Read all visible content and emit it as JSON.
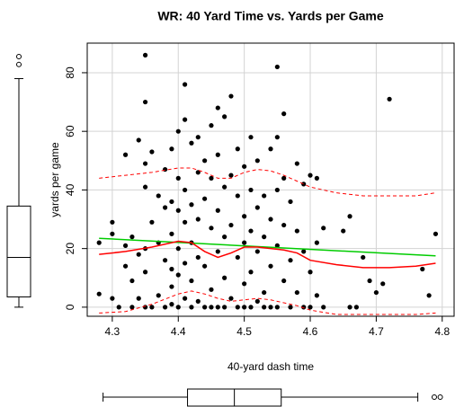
{
  "chart_data": {
    "type": "scatter",
    "title": "WR: 40 Yard Time vs. Yards per Game",
    "x_label": "40-yard dash time",
    "y_label": "yards per game",
    "color": "#000000",
    "grid": true,
    "xlim": [
      4.262,
      4.818
    ],
    "ylim": [
      -3.1,
      90.1
    ],
    "xticks": [
      4.3,
      4.4,
      4.5,
      4.6,
      4.7,
      4.8
    ],
    "yticks": [
      0,
      20,
      40,
      60,
      80
    ],
    "x": [
      4.28,
      4.28,
      4.3,
      4.3,
      4.3,
      4.31,
      4.32,
      4.32,
      4.32,
      4.33,
      4.33,
      4.33,
      4.34,
      4.34,
      4.34,
      4.35,
      4.35,
      4.35,
      4.35,
      4.35,
      4.35,
      4.35,
      4.36,
      4.36,
      4.36,
      4.37,
      4.37,
      4.37,
      4.38,
      4.38,
      4.38,
      4.38,
      4.39,
      4.39,
      4.39,
      4.39,
      4.39,
      4.39,
      4.4,
      4.4,
      4.4,
      4.4,
      4.4,
      4.4,
      4.41,
      4.41,
      4.41,
      4.41,
      4.41,
      4.41,
      4.42,
      4.42,
      4.42,
      4.42,
      4.42,
      4.43,
      4.43,
      4.43,
      4.43,
      4.43,
      4.44,
      4.44,
      4.44,
      4.44,
      4.45,
      4.45,
      4.45,
      4.45,
      4.45,
      4.46,
      4.46,
      4.46,
      4.46,
      4.46,
      4.47,
      4.47,
      4.47,
      4.47,
      4.47,
      4.48,
      4.48,
      4.48,
      4.48,
      4.49,
      4.49,
      4.49,
      4.49,
      4.5,
      4.5,
      4.5,
      4.5,
      4.5,
      4.51,
      4.51,
      4.51,
      4.51,
      4.51,
      4.52,
      4.52,
      4.52,
      4.52,
      4.53,
      4.53,
      4.53,
      4.53,
      4.54,
      4.54,
      4.54,
      4.54,
      4.55,
      4.55,
      4.55,
      4.55,
      4.55,
      4.56,
      4.56,
      4.56,
      4.56,
      4.57,
      4.57,
      4.57,
      4.58,
      4.58,
      4.58,
      4.59,
      4.59,
      4.59,
      4.6,
      4.6,
      4.6,
      4.61,
      4.61,
      4.61,
      4.62,
      4.62,
      4.65,
      4.66,
      4.66,
      4.67,
      4.68,
      4.69,
      4.7,
      4.71,
      4.72,
      4.77,
      4.78,
      4.79
    ],
    "values": [
      4.5,
      22,
      29,
      25,
      3,
      0,
      52,
      21,
      14,
      24,
      9,
      0,
      57,
      18,
      3,
      86,
      70,
      49,
      41,
      20,
      12,
      0,
      53,
      29,
      0,
      38,
      22,
      4,
      47,
      34,
      16,
      0,
      54,
      36,
      25,
      13,
      7,
      1,
      60,
      44,
      33,
      20,
      11,
      0,
      76,
      64,
      40,
      29,
      15,
      3,
      56,
      35,
      22,
      9,
      0,
      58,
      46,
      30,
      17,
      2,
      50,
      37,
      14,
      0,
      62,
      44,
      27,
      6,
      0,
      68,
      52,
      33,
      19,
      0,
      65,
      41,
      24,
      10,
      0,
      72,
      45,
      28,
      3,
      54,
      38,
      17,
      0,
      48,
      31,
      22,
      8,
      0,
      58,
      40,
      26,
      12,
      0,
      50,
      34,
      19,
      2,
      38,
      24,
      5,
      0,
      54,
      30,
      14,
      0,
      82,
      58,
      40,
      21,
      0,
      66,
      44,
      28,
      9,
      36,
      16,
      0,
      49,
      26,
      5,
      42,
      19,
      0,
      45,
      12,
      0,
      44,
      22,
      4,
      27,
      0,
      26,
      31,
      0,
      0,
      17,
      9,
      5,
      8,
      71,
      13,
      4,
      25
    ],
    "lines": [
      {
        "color": "#00cc00",
        "dash": false,
        "x": [
          4.28,
          4.79
        ],
        "values": [
          23.5,
          17.5
        ]
      },
      {
        "color": "#ff0000",
        "dash": false,
        "x": [
          4.28,
          4.32,
          4.36,
          4.4,
          4.42,
          4.44,
          4.46,
          4.48,
          4.5,
          4.52,
          4.54,
          4.56,
          4.58,
          4.6,
          4.64,
          4.68,
          4.72,
          4.76,
          4.79
        ],
        "values": [
          18,
          19,
          20.5,
          22.5,
          22,
          19,
          17,
          18.5,
          20.5,
          20.5,
          20,
          19.5,
          18.5,
          16,
          14.5,
          13.5,
          13.5,
          14,
          15
        ]
      },
      {
        "color": "#ff0000",
        "dash": true,
        "x": [
          4.28,
          4.32,
          4.36,
          4.4,
          4.42,
          4.44,
          4.46,
          4.48,
          4.5,
          4.52,
          4.54,
          4.56,
          4.58,
          4.6,
          4.64,
          4.68,
          4.72,
          4.76,
          4.79
        ],
        "values": [
          44,
          45,
          46,
          47.5,
          47.5,
          46,
          44,
          44,
          46,
          47,
          46.5,
          45,
          43,
          41,
          39,
          38,
          38,
          38,
          39
        ]
      },
      {
        "color": "#ff0000",
        "dash": true,
        "x": [
          4.28,
          4.32,
          4.36,
          4.4,
          4.42,
          4.44,
          4.46,
          4.48,
          4.5,
          4.52,
          4.54,
          4.56,
          4.58,
          4.6,
          4.64,
          4.68,
          4.72,
          4.76,
          4.79
        ],
        "values": [
          -2,
          -1.5,
          1,
          4.5,
          5.5,
          4.5,
          3,
          2,
          2.5,
          3,
          2.5,
          1.5,
          0.5,
          -1,
          -2.5,
          -2.5,
          -2.5,
          -2.5,
          -2
        ]
      }
    ],
    "y_box": {
      "min": 0,
      "q1": 3.5,
      "median": 17,
      "q3": 34.5,
      "max": 78,
      "outliers": [
        82.8,
        85.5
      ]
    },
    "x_box": {
      "min": 4.286,
      "q1": 4.414,
      "median": 4.485,
      "q3": 4.556,
      "max": 4.763,
      "outliers": [
        4.788,
        4.797
      ]
    }
  }
}
